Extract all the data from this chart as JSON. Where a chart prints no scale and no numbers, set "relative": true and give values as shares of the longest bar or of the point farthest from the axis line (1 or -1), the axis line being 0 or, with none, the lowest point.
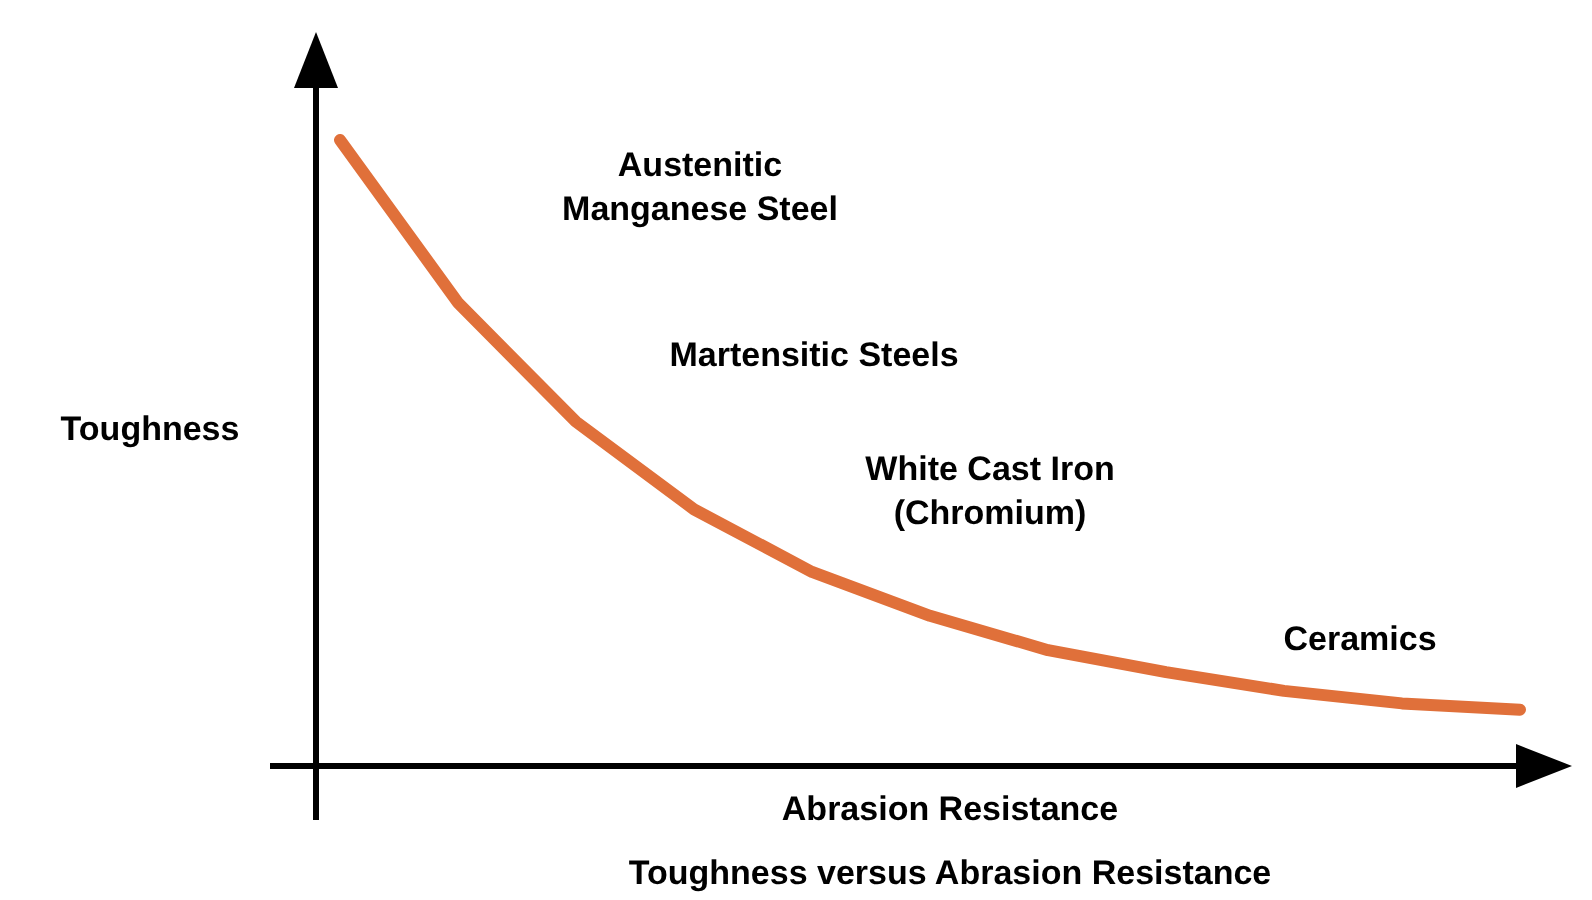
{
  "chart_data": {
    "type": "line",
    "title": "Toughness versus Abrasion Resistance",
    "xlabel": "Abrasion Resistance",
    "ylabel": "Toughness",
    "relative": true,
    "categories": [
      null,
      null,
      null,
      null,
      null,
      null,
      null,
      null,
      null,
      null,
      null
    ],
    "series": [
      {
        "color": "#e0703a",
        "values": [
          1.0,
          0.74,
          0.55,
          0.41,
          0.31,
          0.24,
          0.185,
          0.15,
          0.12,
          0.1,
          0.09
        ]
      }
    ],
    "annotations": [
      "Austenitic\nManganese Steel",
      "Martensitic Steels",
      "White Cast Iron\n(Chromium)",
      "Ceramics"
    ]
  }
}
